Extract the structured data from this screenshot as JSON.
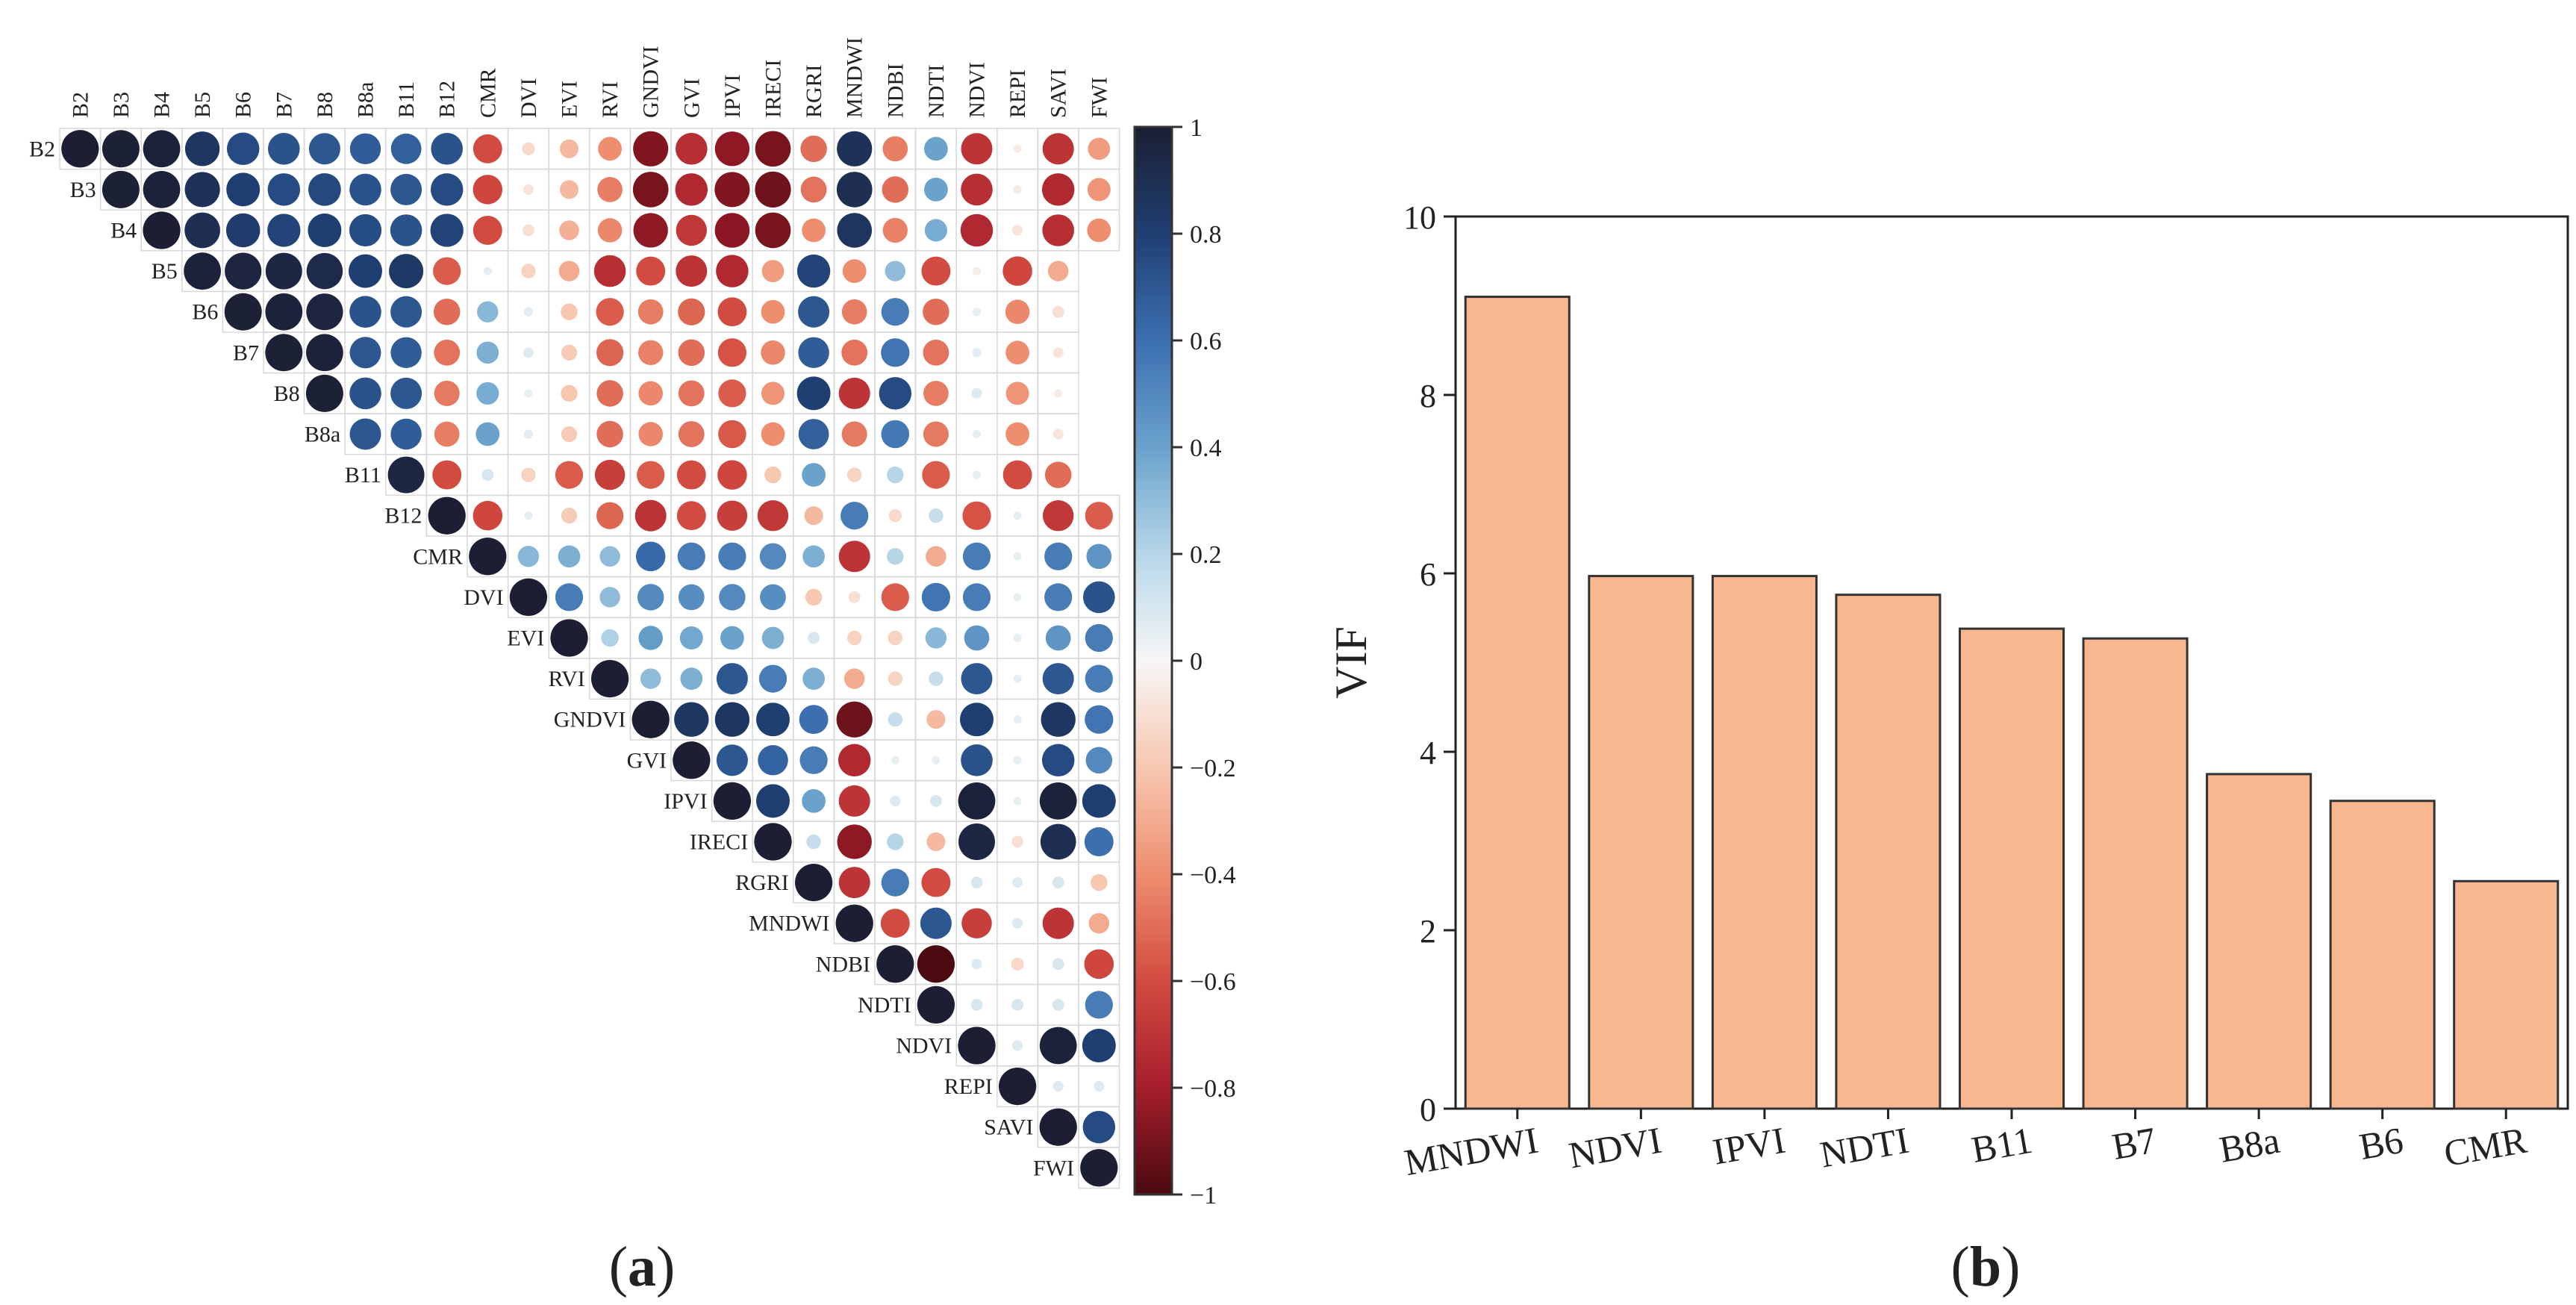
{
  "panel_labels": {
    "a": "a",
    "b": "b"
  },
  "chart_data": [
    {
      "type": "heatmap",
      "title": "",
      "variables": [
        "B2",
        "B3",
        "B4",
        "B5",
        "B6",
        "B7",
        "B8",
        "B8a",
        "B11",
        "B12",
        "CMR",
        "DVI",
        "EVI",
        "RVI",
        "GNDVI",
        "GVI",
        "IPVI",
        "IRECI",
        "RGRI",
        "MNDWI",
        "NDBI",
        "NDTI",
        "NDVI",
        "REPI",
        "SAVI",
        "FWI"
      ],
      "matrix_form": "upper_triangle_circles",
      "colorbar": {
        "min": -1,
        "max": 1,
        "ticks": [
          1,
          0.8,
          0.6,
          0.4,
          0.2,
          0,
          -0.2,
          -0.4,
          -0.6,
          -0.8,
          -1
        ],
        "tick_labels": [
          "1",
          "0.8",
          "0.6",
          "0.4",
          "0.2",
          "0",
          "−0.2",
          "−0.4",
          "−0.6",
          "−0.8",
          "−1"
        ]
      },
      "colors": {
        "positive": "#1f2a44",
        "mid_positive": "#3b6fb0",
        "light_positive": "#92c5de",
        "neutral": "#f7f7f7",
        "light_negative": "#f4a582",
        "mid_negative": "#d6604d",
        "negative": "#67001f"
      },
      "rows": [
        [
          1.0,
          0.99,
          0.98,
          0.85,
          0.75,
          0.72,
          0.7,
          0.68,
          0.66,
          0.72,
          -0.6,
          -0.12,
          -0.25,
          -0.4,
          -0.88,
          -0.72,
          -0.85,
          -0.9,
          -0.5,
          0.88,
          -0.45,
          0.4,
          -0.7,
          -0.05,
          -0.7,
          -0.35
        ],
        [
          0.99,
          0.98,
          0.88,
          0.8,
          0.75,
          0.76,
          0.72,
          0.7,
          0.75,
          -0.62,
          -0.08,
          -0.25,
          -0.45,
          -0.9,
          -0.75,
          -0.88,
          -0.92,
          -0.48,
          0.9,
          -0.5,
          0.4,
          -0.72,
          -0.05,
          -0.75,
          -0.38
        ],
        [
          1.0,
          0.9,
          0.82,
          0.78,
          0.8,
          0.74,
          0.72,
          0.78,
          -0.6,
          -0.1,
          -0.28,
          -0.42,
          -0.85,
          -0.68,
          -0.86,
          -0.9,
          -0.4,
          0.86,
          -0.44,
          0.36,
          -0.75,
          -0.08,
          -0.72,
          -0.4
        ],
        [
          0.98,
          0.96,
          0.95,
          0.93,
          0.8,
          0.84,
          -0.55,
          0.05,
          -0.15,
          -0.3,
          -0.72,
          -0.6,
          -0.7,
          -0.75,
          -0.35,
          0.78,
          -0.4,
          0.3,
          -0.6,
          -0.05,
          -0.62,
          -0.3
        ],
        [
          0.99,
          0.98,
          0.96,
          0.72,
          0.7,
          -0.5,
          0.32,
          0.06,
          -0.2,
          -0.55,
          -0.45,
          -0.52,
          -0.6,
          -0.4,
          0.7,
          -0.45,
          0.55,
          -0.5,
          0.05,
          -0.42,
          -0.1
        ],
        [
          0.99,
          0.98,
          0.7,
          0.68,
          -0.48,
          0.35,
          0.08,
          -0.18,
          -0.52,
          -0.44,
          -0.5,
          -0.58,
          -0.42,
          0.68,
          -0.48,
          0.58,
          -0.48,
          0.06,
          -0.4,
          -0.08
        ],
        [
          0.99,
          0.72,
          0.7,
          -0.46,
          0.36,
          0.05,
          -0.2,
          -0.5,
          -0.42,
          -0.48,
          -0.55,
          -0.38,
          0.8,
          -0.7,
          0.75,
          -0.45,
          0.08,
          -0.38,
          -0.05
        ],
        [
          0.7,
          0.68,
          -0.45,
          0.4,
          0.06,
          -0.18,
          -0.5,
          -0.42,
          -0.48,
          -0.56,
          -0.4,
          0.66,
          -0.46,
          0.56,
          -0.46,
          0.05,
          -0.4,
          -0.08
        ],
        [
          0.95,
          -0.6,
          0.1,
          -0.15,
          -0.55,
          -0.65,
          -0.55,
          -0.6,
          -0.62,
          -0.2,
          0.4,
          -0.15,
          0.2,
          -0.55,
          0.05,
          -0.6,
          -0.5
        ],
        [
          1.0,
          -0.62,
          0.05,
          -0.18,
          -0.52,
          -0.7,
          -0.6,
          -0.65,
          -0.68,
          -0.25,
          0.55,
          -0.12,
          0.15,
          -0.58,
          0.05,
          -0.68,
          -0.55
        ],
        [
          1.0,
          0.32,
          0.35,
          0.3,
          0.62,
          0.55,
          0.55,
          0.5,
          0.35,
          -0.7,
          0.2,
          -0.3,
          0.55,
          0.05,
          0.55,
          0.45
        ],
        [
          1.0,
          0.55,
          0.3,
          0.5,
          0.48,
          0.5,
          0.48,
          -0.2,
          -0.1,
          -0.55,
          0.58,
          0.55,
          0.05,
          0.55,
          0.72
        ],
        [
          1.0,
          0.22,
          0.42,
          0.38,
          0.4,
          0.35,
          0.1,
          -0.15,
          -0.15,
          0.32,
          0.45,
          0.05,
          0.45,
          0.55
        ],
        [
          1.0,
          0.3,
          0.35,
          0.7,
          0.55,
          0.35,
          -0.3,
          -0.15,
          0.15,
          0.7,
          0.05,
          0.7,
          0.55
        ],
        [
          1.0,
          0.85,
          0.85,
          0.8,
          0.6,
          -0.92,
          0.15,
          -0.25,
          0.8,
          0.05,
          0.85,
          0.58
        ],
        [
          1.0,
          0.7,
          0.65,
          0.55,
          -0.75,
          0.05,
          0.05,
          0.72,
          0.05,
          0.75,
          0.5
        ],
        [
          1.0,
          0.8,
          0.4,
          -0.7,
          0.08,
          0.1,
          0.98,
          0.05,
          0.98,
          0.8
        ],
        [
          1.0,
          0.15,
          -0.85,
          0.2,
          -0.25,
          0.95,
          -0.1,
          0.9,
          0.6
        ],
        [
          1.0,
          -0.7,
          0.55,
          -0.6,
          0.1,
          0.08,
          0.1,
          -0.2
        ],
        [
          1.0,
          -0.6,
          0.7,
          -0.65,
          0.08,
          -0.7,
          -0.3
        ],
        [
          1.0,
          -1.0,
          0.08,
          -0.12,
          0.1,
          -0.62
        ],
        [
          1.0,
          0.1,
          0.1,
          0.1,
          0.55
        ],
        [
          1.0,
          0.08,
          0.98,
          0.8
        ],
        [
          1.0,
          0.08,
          0.08
        ],
        [
          1.0,
          0.75
        ],
        [
          1.0
        ]
      ]
    },
    {
      "type": "bar",
      "title": "",
      "categories": [
        "MNDWI",
        "NDVI",
        "IPVI",
        "NDTI",
        "B11",
        "B7",
        "B8a",
        "B6",
        "CMR"
      ],
      "values": [
        9.1,
        5.97,
        5.97,
        5.76,
        5.38,
        5.27,
        3.75,
        3.45,
        2.55
      ],
      "xlabel": "",
      "ylabel": "VIF",
      "ylim": [
        0,
        10
      ],
      "yticks": [
        0,
        2,
        4,
        6,
        8,
        10
      ],
      "bar_color": "#f8b78e",
      "edge_color": "#333333"
    }
  ]
}
